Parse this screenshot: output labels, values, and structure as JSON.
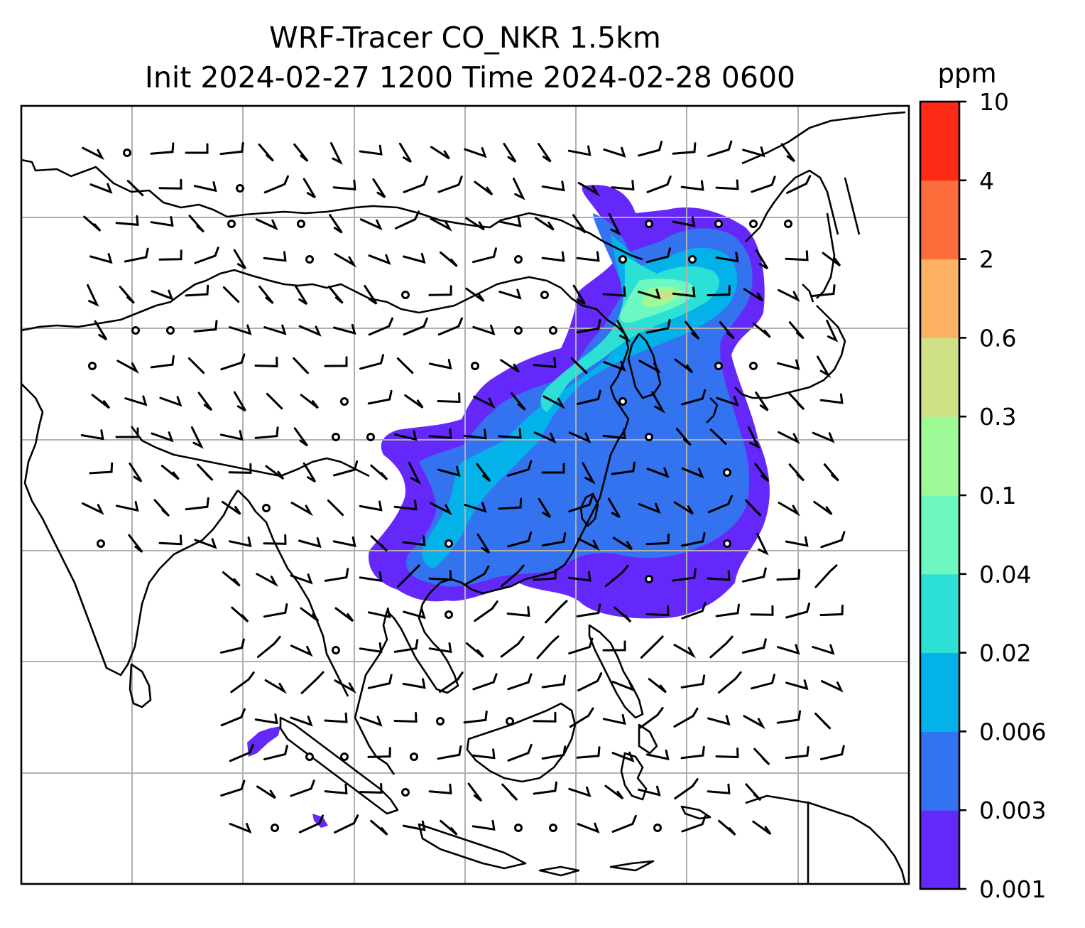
{
  "title": {
    "line1": "WRF-Tracer CO_NKR 1.5km",
    "line2": "Init 2024-02-27 1200 Time 2024-02-28 0600"
  },
  "colorbar": {
    "unit": "ppm",
    "levels": [
      "0.001",
      "0.003",
      "0.006",
      "0.02",
      "0.04",
      "0.1",
      "0.3",
      "0.6",
      "2",
      "4",
      "10"
    ],
    "colors": [
      "#6428fa",
      "#3473f0",
      "#04b2ea",
      "#2de0d6",
      "#6cf8c0",
      "#9dfa96",
      "#cfe186",
      "#fdb162",
      "#fe6e3c",
      "#fe2c17"
    ]
  },
  "map": {
    "grid_color": "#b0b0b0",
    "coastline_color": "#000000",
    "wind_barb_color": "#000000"
  }
}
